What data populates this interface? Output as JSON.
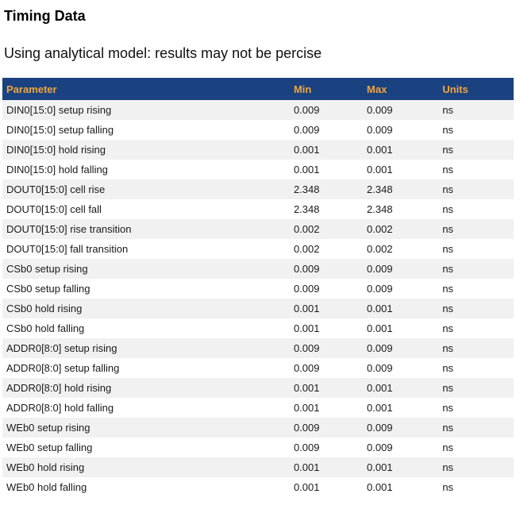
{
  "page": {
    "title": "Timing Data",
    "subtitle": "Using analytical model: results may not be percise"
  },
  "table": {
    "columns": [
      "Parameter",
      "Min",
      "Max",
      "Units"
    ],
    "rows": [
      {
        "parameter": "DIN0[15:0] setup rising",
        "min": "0.009",
        "max": "0.009",
        "units": "ns"
      },
      {
        "parameter": "DIN0[15:0] setup falling",
        "min": "0.009",
        "max": "0.009",
        "units": "ns"
      },
      {
        "parameter": "DIN0[15:0] hold rising",
        "min": "0.001",
        "max": "0.001",
        "units": "ns"
      },
      {
        "parameter": "DIN0[15:0] hold falling",
        "min": "0.001",
        "max": "0.001",
        "units": "ns"
      },
      {
        "parameter": "DOUT0[15:0] cell rise",
        "min": "2.348",
        "max": "2.348",
        "units": "ns"
      },
      {
        "parameter": "DOUT0[15:0] cell fall",
        "min": "2.348",
        "max": "2.348",
        "units": "ns"
      },
      {
        "parameter": "DOUT0[15:0] rise transition",
        "min": "0.002",
        "max": "0.002",
        "units": "ns"
      },
      {
        "parameter": "DOUT0[15:0] fall transition",
        "min": "0.002",
        "max": "0.002",
        "units": "ns"
      },
      {
        "parameter": "CSb0 setup rising",
        "min": "0.009",
        "max": "0.009",
        "units": "ns"
      },
      {
        "parameter": "CSb0 setup falling",
        "min": "0.009",
        "max": "0.009",
        "units": "ns"
      },
      {
        "parameter": "CSb0 hold rising",
        "min": "0.001",
        "max": "0.001",
        "units": "ns"
      },
      {
        "parameter": "CSb0 hold falling",
        "min": "0.001",
        "max": "0.001",
        "units": "ns"
      },
      {
        "parameter": "ADDR0[8:0] setup rising",
        "min": "0.009",
        "max": "0.009",
        "units": "ns"
      },
      {
        "parameter": "ADDR0[8:0] setup falling",
        "min": "0.009",
        "max": "0.009",
        "units": "ns"
      },
      {
        "parameter": "ADDR0[8:0] hold rising",
        "min": "0.001",
        "max": "0.001",
        "units": "ns"
      },
      {
        "parameter": "ADDR0[8:0] hold falling",
        "min": "0.001",
        "max": "0.001",
        "units": "ns"
      },
      {
        "parameter": "WEb0 setup rising",
        "min": "0.009",
        "max": "0.009",
        "units": "ns"
      },
      {
        "parameter": "WEb0 setup falling",
        "min": "0.009",
        "max": "0.009",
        "units": "ns"
      },
      {
        "parameter": "WEb0 hold rising",
        "min": "0.001",
        "max": "0.001",
        "units": "ns"
      },
      {
        "parameter": "WEb0 hold falling",
        "min": "0.001",
        "max": "0.001",
        "units": "ns"
      }
    ]
  },
  "colors": {
    "header_bg": "#1B4280",
    "header_text": "#F0A63C",
    "row_alt_bg": "#F1F1F1",
    "row_text": "#1A1A1A"
  }
}
